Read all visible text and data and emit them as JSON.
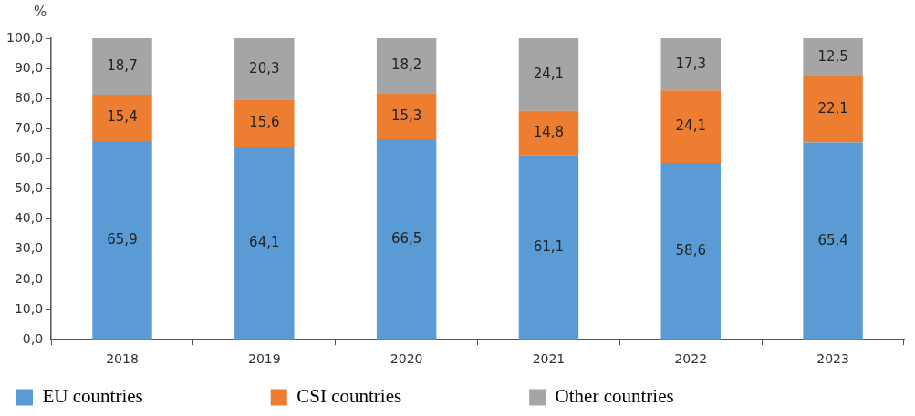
{
  "chart_data": {
    "type": "bar",
    "stacked": true,
    "ylabel": "%",
    "categories": [
      "2018",
      "2019",
      "2020",
      "2021",
      "2022",
      "2023"
    ],
    "series": [
      {
        "name": "EU countries",
        "color": "#5b9bd5",
        "values": [
          65.9,
          64.1,
          66.5,
          61.1,
          58.6,
          65.4
        ],
        "value_labels": [
          "65,9",
          "64,1",
          "66,5",
          "61,1",
          "58,6",
          "65,4"
        ]
      },
      {
        "name": "CSI countries",
        "color": "#ed7d31",
        "values": [
          15.4,
          15.6,
          15.3,
          14.8,
          24.1,
          22.1
        ],
        "value_labels": [
          "15,4",
          "15,6",
          "15,3",
          "14,8",
          "24,1",
          "22,1"
        ]
      },
      {
        "name": "Other countries",
        "color": "#a5a5a5",
        "values": [
          18.7,
          20.3,
          18.2,
          24.1,
          17.3,
          12.5
        ],
        "value_labels": [
          "18,7",
          "20,3",
          "18,2",
          "24,1",
          "17,3",
          "12,5"
        ]
      }
    ],
    "ylim": [
      0,
      100
    ],
    "yticks": [
      {
        "value": 0,
        "label": "0,0"
      },
      {
        "value": 10,
        "label": "10,0"
      },
      {
        "value": 20,
        "label": "20,0"
      },
      {
        "value": 30,
        "label": "30,0"
      },
      {
        "value": 40,
        "label": "40,0"
      },
      {
        "value": 50,
        "label": "50,0"
      },
      {
        "value": 60,
        "label": "60,0"
      },
      {
        "value": 70,
        "label": "70,0"
      },
      {
        "value": 80,
        "label": "80,0"
      },
      {
        "value": 90,
        "label": "90,0"
      },
      {
        "value": 100,
        "label": "100,0"
      }
    ],
    "grid": false,
    "legend": "bottom"
  }
}
